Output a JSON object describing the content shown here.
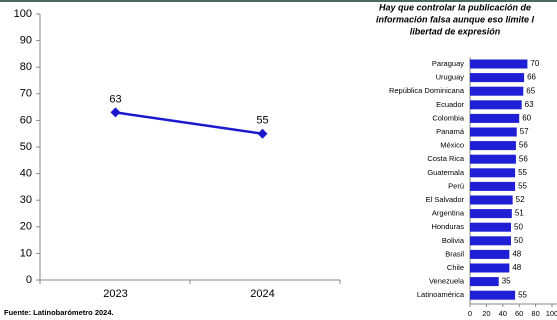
{
  "source": "Fuente: Latinobarómetro 2024.",
  "chart_data": [
    {
      "type": "line",
      "categories": [
        "2023",
        "2024"
      ],
      "values": [
        63,
        55
      ],
      "color": "#1a1acc",
      "ylim": [
        0,
        100
      ],
      "yticks": [
        0,
        10,
        20,
        30,
        40,
        50,
        60,
        70,
        80,
        90,
        100
      ]
    },
    {
      "type": "bar",
      "orientation": "horizontal",
      "title": [
        "Hay que controlar la publicación de",
        "información falsa aunque eso limite l",
        "libertad de expresión"
      ],
      "categories": [
        "Paraguay",
        "Uruguay",
        "República Dominicana",
        "Ecuador",
        "Colombia",
        "Panamá",
        "México",
        "Costa Rica",
        "Guatemala",
        "Perú",
        "El Salvador",
        "Argentina",
        "Honduras",
        "Bolivia",
        "Brasil",
        "Chile",
        "Venezuela",
        "Latinoamérica"
      ],
      "values": [
        70,
        66,
        65,
        63,
        60,
        57,
        56,
        56,
        55,
        55,
        52,
        51,
        50,
        50,
        48,
        48,
        35,
        55
      ],
      "color": "#1f1fd6",
      "xlim": [
        0,
        100
      ],
      "xticks": [
        0,
        20,
        40,
        60,
        80,
        100
      ]
    }
  ]
}
